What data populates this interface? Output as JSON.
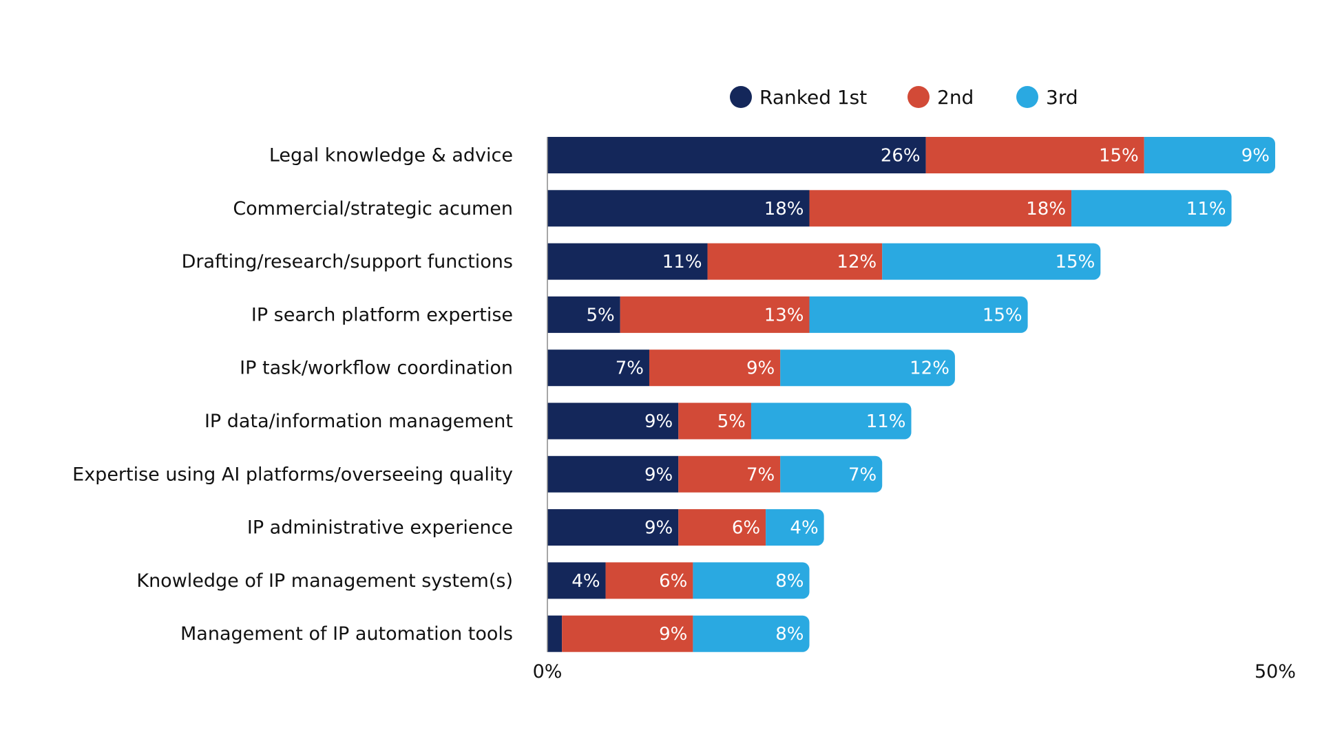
{
  "chart_data": {
    "type": "bar",
    "orientation": "horizontal",
    "stacked": true,
    "categories": [
      "Legal knowledge & advice",
      "Commercial/strategic acumen",
      "Drafting/research/support functions",
      "IP search platform expertise",
      "IP task/workflow coordination",
      "IP data/information management",
      "Expertise using AI platforms/overseeing quality",
      "IP administrative experience",
      "Knowledge of IP management system(s)",
      "Management of IP automation tools"
    ],
    "series": [
      {
        "name": "Ranked 1st",
        "color": "#14275a",
        "values": [
          26,
          18,
          11,
          5,
          7,
          9,
          9,
          9,
          4,
          1
        ],
        "labels": [
          "26%",
          "18%",
          "11%",
          "5%",
          "7%",
          "9%",
          "9%",
          "9%",
          "4%",
          ""
        ]
      },
      {
        "name": "2nd",
        "color": "#d24a37",
        "values": [
          15,
          18,
          12,
          13,
          9,
          5,
          7,
          6,
          6,
          9
        ],
        "labels": [
          "15%",
          "18%",
          "12%",
          "13%",
          "9%",
          "5%",
          "7%",
          "6%",
          "6%",
          "9%"
        ]
      },
      {
        "name": "3rd",
        "color": "#2aa9e1",
        "values": [
          9,
          11,
          15,
          15,
          12,
          11,
          7,
          4,
          8,
          8
        ],
        "labels": [
          "9%",
          "11%",
          "15%",
          "15%",
          "12%",
          "11%",
          "7%",
          "4%",
          "8%",
          "8%"
        ]
      }
    ],
    "xlim": [
      0,
      50
    ],
    "ticks": [
      "0%",
      "50%"
    ],
    "legend_position": "top",
    "grid": false,
    "title": "",
    "xlabel": "",
    "ylabel": ""
  }
}
